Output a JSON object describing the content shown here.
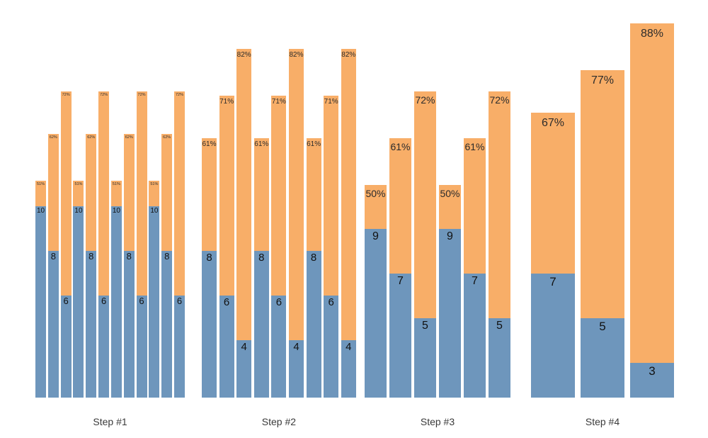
{
  "chart_data": {
    "type": "bar",
    "variant": "stacked-repeated-funnel",
    "title": "",
    "xlabel": "",
    "ylabel": "",
    "legend": "none",
    "gridlines": false,
    "axis_lines": false,
    "categories": [
      "Step #1",
      "Step #2",
      "Step #3",
      "Step #4"
    ],
    "colors": {
      "bottom_segment": "#6E96BC",
      "top_segment": "#F8AE68",
      "value_label_text": "#111111",
      "percent_label_text": "#2b2b2b",
      "axis_label_text": "#3a3a3a",
      "background": "#ffffff"
    },
    "groups": [
      {
        "label": "Step #1",
        "bars": [
          {
            "value": 10,
            "percent": 51,
            "percent_label": "51%"
          },
          {
            "value": 8,
            "percent": 62,
            "percent_label": "62%"
          },
          {
            "value": 6,
            "percent": 72,
            "percent_label": "72%"
          },
          {
            "value": 10,
            "percent": 51,
            "percent_label": "51%"
          },
          {
            "value": 8,
            "percent": 62,
            "percent_label": "62%"
          },
          {
            "value": 6,
            "percent": 72,
            "percent_label": "72%"
          },
          {
            "value": 10,
            "percent": 51,
            "percent_label": "51%"
          },
          {
            "value": 8,
            "percent": 62,
            "percent_label": "62%"
          },
          {
            "value": 6,
            "percent": 72,
            "percent_label": "72%"
          },
          {
            "value": 10,
            "percent": 51,
            "percent_label": "51%"
          },
          {
            "value": 8,
            "percent": 62,
            "percent_label": "62%"
          },
          {
            "value": 6,
            "percent": 72,
            "percent_label": "72%"
          }
        ]
      },
      {
        "label": "Step #2",
        "bars": [
          {
            "value": 8,
            "percent": 61,
            "percent_label": "61%"
          },
          {
            "value": 6,
            "percent": 71,
            "percent_label": "71%"
          },
          {
            "value": 4,
            "percent": 82,
            "percent_label": "82%"
          },
          {
            "value": 8,
            "percent": 61,
            "percent_label": "61%"
          },
          {
            "value": 6,
            "percent": 71,
            "percent_label": "71%"
          },
          {
            "value": 4,
            "percent": 82,
            "percent_label": "82%"
          },
          {
            "value": 8,
            "percent": 61,
            "percent_label": "61%"
          },
          {
            "value": 6,
            "percent": 71,
            "percent_label": "71%"
          },
          {
            "value": 4,
            "percent": 82,
            "percent_label": "82%"
          }
        ]
      },
      {
        "label": "Step #3",
        "bars": [
          {
            "value": 9,
            "percent": 50,
            "percent_label": "50%"
          },
          {
            "value": 7,
            "percent": 61,
            "percent_label": "61%"
          },
          {
            "value": 5,
            "percent": 72,
            "percent_label": "72%"
          },
          {
            "value": 9,
            "percent": 50,
            "percent_label": "50%"
          },
          {
            "value": 7,
            "percent": 61,
            "percent_label": "61%"
          },
          {
            "value": 5,
            "percent": 72,
            "percent_label": "72%"
          }
        ]
      },
      {
        "label": "Step #4",
        "bars": [
          {
            "value": 7,
            "percent": 67,
            "percent_label": "67%"
          },
          {
            "value": 5,
            "percent": 77,
            "percent_label": "77%"
          },
          {
            "value": 3,
            "percent": 88,
            "percent_label": "88%"
          }
        ]
      }
    ]
  }
}
